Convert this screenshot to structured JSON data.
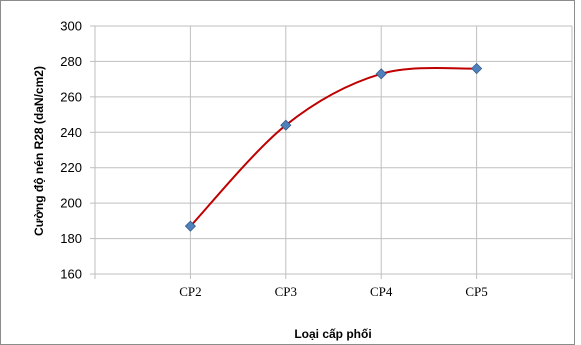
{
  "chart_data": {
    "type": "line",
    "title": "",
    "xlabel": "Loại cấp phối",
    "ylabel": "Cường độ nén R28 (daN/cm2)",
    "categories": [
      "CP2",
      "CP3",
      "CP4",
      "CP5"
    ],
    "series": [
      {
        "values": [
          187,
          244,
          273,
          276
        ]
      }
    ],
    "ylim": [
      160,
      300
    ],
    "yticks": [
      "160",
      "180",
      "200",
      "220",
      "240",
      "260",
      "280",
      "300"
    ],
    "grid": true,
    "smooth": true,
    "legend": "none",
    "line_color": "#c00000",
    "marker_color": "#4f81bd",
    "marker": "diamond",
    "gridline_color": "#bfbfbf"
  }
}
